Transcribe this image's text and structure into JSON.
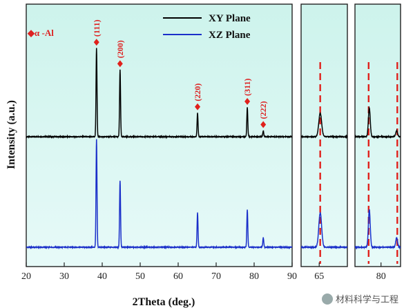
{
  "chart_data": {
    "type": "line",
    "xlabel": "2Theta (deg.)",
    "ylabel": "Intensity (a.u.)",
    "main_xlim": [
      20,
      90
    ],
    "main_xticks": [
      20,
      30,
      40,
      50,
      60,
      70,
      80,
      90
    ],
    "zoom_panels": [
      {
        "xlim": [
          63.2,
          67.8
        ],
        "xticks": [
          65
        ],
        "reference_x": 65.1
      },
      {
        "xlim": [
          76.0,
          83.0
        ],
        "xticks": [
          80
        ],
        "reference_x": [
          78.1,
          82.5
        ]
      }
    ],
    "phase_marker": "◆α -Al",
    "series": [
      {
        "name": "XY Plane",
        "color": "#000000",
        "peaks": [
          {
            "x": 38.5,
            "h": 0.82
          },
          {
            "x": 44.7,
            "h": 0.62
          },
          {
            "x": 65.1,
            "h": 0.22
          },
          {
            "x": 78.2,
            "h": 0.27
          },
          {
            "x": 82.4,
            "h": 0.055
          }
        ]
      },
      {
        "name": "XZ Plane",
        "color": "#1a2fc9",
        "peaks": [
          {
            "x": 38.5,
            "h": 1.0
          },
          {
            "x": 44.7,
            "h": 0.62
          },
          {
            "x": 65.1,
            "h": 0.32
          },
          {
            "x": 78.2,
            "h": 0.35
          },
          {
            "x": 82.4,
            "h": 0.09
          }
        ]
      }
    ],
    "peak_labels": [
      {
        "x": 38.5,
        "text": "(111)"
      },
      {
        "x": 44.7,
        "text": "(200)"
      },
      {
        "x": 65.1,
        "text": "(220)"
      },
      {
        "x": 78.2,
        "text": "(311)"
      },
      {
        "x": 82.4,
        "text": "(222)"
      }
    ],
    "legend_placement": "top-center",
    "grid": false
  },
  "watermark": "材料科学与工程",
  "colors": {
    "panel_bg_top": "#cdf3ec",
    "panel_bg_bottom": "#e7faf8",
    "reference_line": "#e0211c",
    "peak_marker": "#e0211c"
  }
}
